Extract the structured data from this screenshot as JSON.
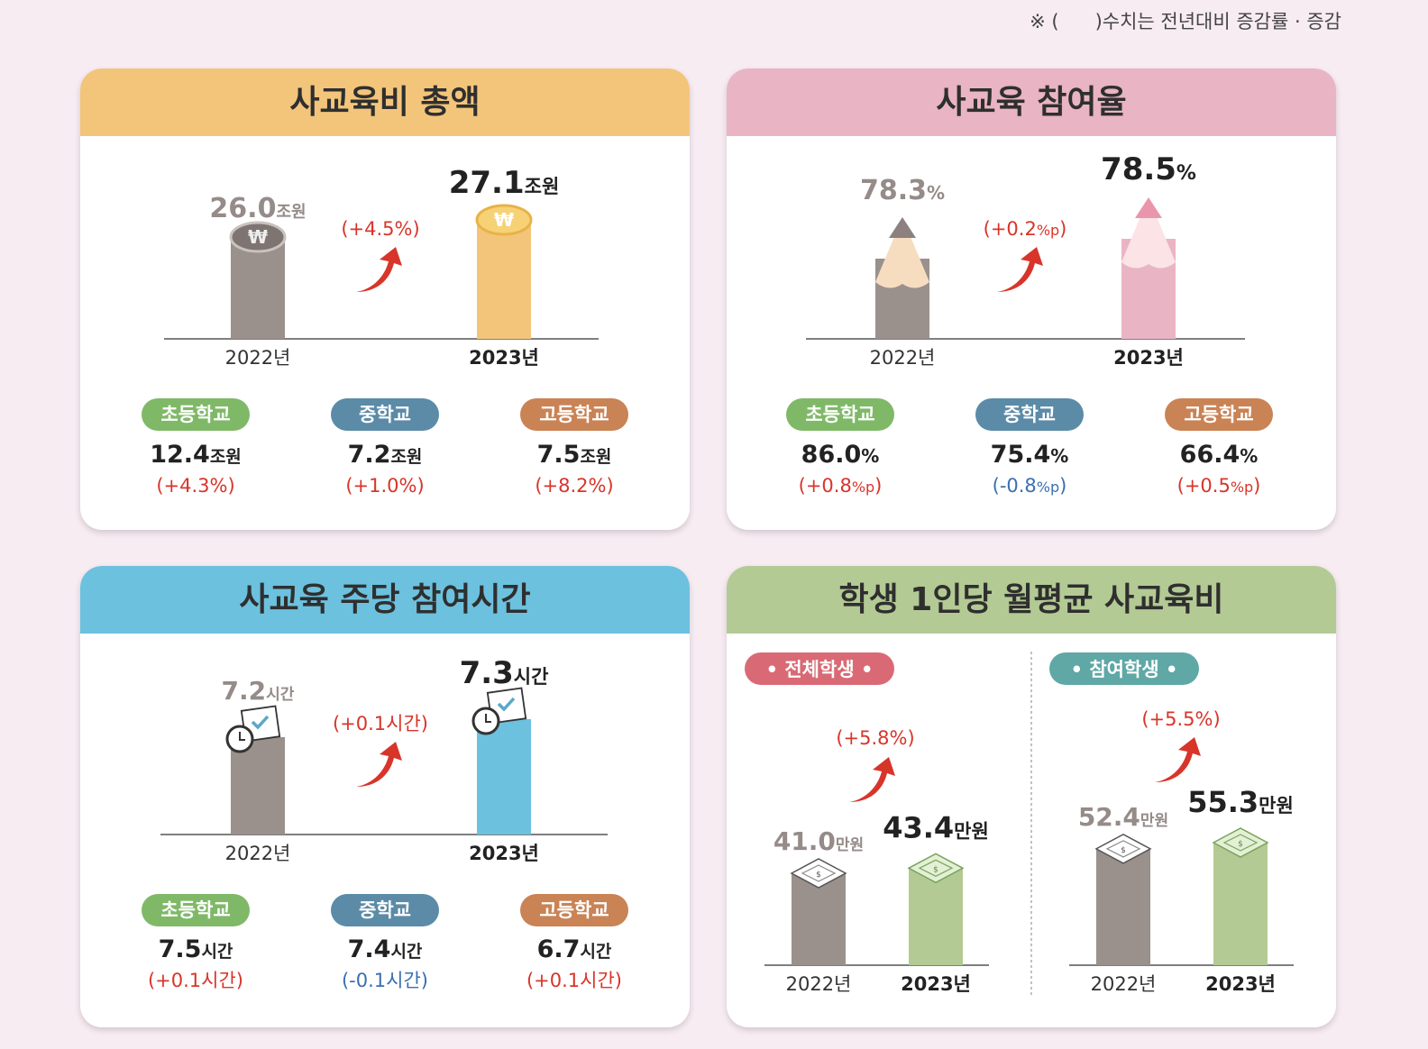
{
  "note": "※ (      )수치는 전년대비 증감률 · 증감",
  "colors": {
    "old": "#9a908c",
    "gold": "#f3c57b",
    "pink": "#e9b4c4",
    "blue": "#6cc1de",
    "green": "#b3ca94",
    "elementary": "#7fb968",
    "middle": "#5b8ba7",
    "high": "#c98355",
    "up": "#d8352a",
    "down": "#3a6fb1",
    "tag_all": "#d96a75",
    "tag_part": "#5fa8a6"
  },
  "chart_data": [
    {
      "type": "bar",
      "title": "사교육비 총액",
      "categories": [
        "2022년",
        "2023년"
      ],
      "values": [
        26.0,
        27.1
      ],
      "unit": "조원",
      "value_labels": [
        "26.0",
        "27.1"
      ],
      "change": "(+4.5%)",
      "icon": "coin-icon",
      "breakdown": [
        {
          "label": "초등학교",
          "value": "12.4",
          "unit": "조원",
          "change": "(+4.3%)",
          "dir": "up"
        },
        {
          "label": "중학교",
          "value": "7.2",
          "unit": "조원",
          "change": "(+1.0%)",
          "dir": "up"
        },
        {
          "label": "고등학교",
          "value": "7.5",
          "unit": "조원",
          "change": "(+8.2%)",
          "dir": "up"
        }
      ]
    },
    {
      "type": "bar",
      "title": "사교육 참여율",
      "categories": [
        "2022년",
        "2023년"
      ],
      "values": [
        78.3,
        78.5
      ],
      "unit": "%",
      "value_labels": [
        "78.3",
        "78.5"
      ],
      "change_num": "(+0.2",
      "change_unit": "%p",
      "icon": "pencil-icon",
      "breakdown": [
        {
          "label": "초등학교",
          "value": "86.0",
          "unit": "%",
          "change_num": "(+0.8",
          "change_unit": "%p",
          "dir": "up"
        },
        {
          "label": "중학교",
          "value": "75.4",
          "unit": "%",
          "change_num": "(-0.8",
          "change_unit": "%p",
          "dir": "down"
        },
        {
          "label": "고등학교",
          "value": "66.4",
          "unit": "%",
          "change_num": "(+0.5",
          "change_unit": "%p",
          "dir": "up"
        }
      ]
    },
    {
      "type": "bar",
      "title": "사교육 주당 참여시간",
      "categories": [
        "2022년",
        "2023년"
      ],
      "values": [
        7.2,
        7.3
      ],
      "unit": "시간",
      "value_labels": [
        "7.2",
        "7.3"
      ],
      "change": "(+0.1시간)",
      "icon": "calendar-clock-icon",
      "breakdown": [
        {
          "label": "초등학교",
          "value": "7.5",
          "unit": "시간",
          "change": "(+0.1시간)",
          "dir": "up"
        },
        {
          "label": "중학교",
          "value": "7.4",
          "unit": "시간",
          "change": "(-0.1시간)",
          "dir": "down"
        },
        {
          "label": "고등학교",
          "value": "6.7",
          "unit": "시간",
          "change": "(+0.1시간)",
          "dir": "up"
        }
      ]
    },
    {
      "type": "bar",
      "title": "학생 1인당 월평균 사교육비",
      "unit": "만원",
      "icon": "banknote-icon",
      "groups": [
        {
          "tag": "• 전체학생 •",
          "categories": [
            "2022년",
            "2023년"
          ],
          "values": [
            41.0,
            43.4
          ],
          "value_labels": [
            "41.0",
            "43.4"
          ],
          "change": "(+5.8%)"
        },
        {
          "tag": "• 참여학생 •",
          "categories": [
            "2022년",
            "2023년"
          ],
          "values": [
            52.4,
            55.3
          ],
          "value_labels": [
            "52.4",
            "55.3"
          ],
          "change": "(+5.5%)"
        }
      ]
    }
  ]
}
